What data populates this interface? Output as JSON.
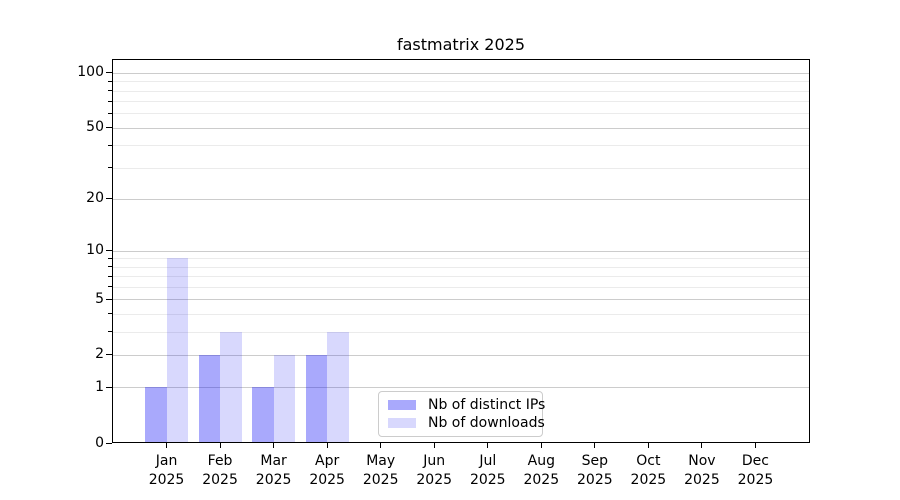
{
  "title": "fastmatrix 2025",
  "colors": {
    "ips": "rgba(10, 10, 245, 0.35)",
    "downloads": "rgba(10, 10, 245, 0.16)",
    "grid_major": "#cccccc",
    "grid_minor": "#ebebeb",
    "spine": "#000000",
    "text": "#000000",
    "legend_border": "#cccccc"
  },
  "legend": {
    "items": [
      {
        "label": "Nb of distinct IPs",
        "color_key": "ips"
      },
      {
        "label": "Nb of downloads",
        "color_key": "downloads"
      }
    ]
  },
  "chart_data": {
    "type": "bar",
    "title": "fastmatrix 2025",
    "categories": [
      "Jan 2025",
      "Feb 2025",
      "Mar 2025",
      "Apr 2025",
      "May 2025",
      "Jun 2025",
      "Jul 2025",
      "Aug 2025",
      "Sep 2025",
      "Oct 2025",
      "Nov 2025",
      "Dec 2025"
    ],
    "series": [
      {
        "name": "Nb of distinct IPs",
        "color_key": "ips",
        "values": [
          1,
          2,
          1,
          2,
          0,
          0,
          0,
          0,
          0,
          0,
          0,
          0
        ]
      },
      {
        "name": "Nb of downloads",
        "color_key": "downloads",
        "values": [
          9,
          3,
          2,
          3,
          0,
          0,
          0,
          0,
          0,
          0,
          0,
          0
        ]
      }
    ],
    "xlabel": "",
    "ylabel": "",
    "yscale": "log1p",
    "ylim": [
      0,
      119
    ],
    "y_major_ticks": [
      0,
      1,
      2,
      5,
      10,
      20,
      50,
      100
    ],
    "y_minor_ticks": [
      3,
      4,
      6,
      7,
      8,
      9,
      30,
      40,
      60,
      70,
      80,
      90
    ],
    "grid": "horizontal-only",
    "legend_position": "lower-center"
  }
}
